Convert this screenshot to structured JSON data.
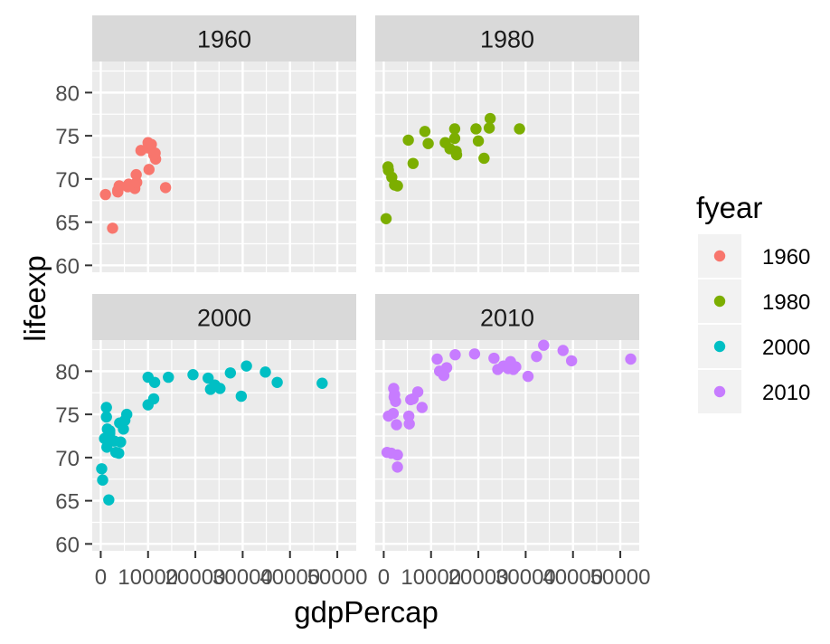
{
  "chart_data": {
    "type": "scatter",
    "xlabel": "gdpPercap",
    "ylabel": "lifeexp",
    "xlim": [
      -1800,
      54000
    ],
    "ylim": [
      59.2,
      83.6
    ],
    "x_ticks": [
      0,
      10000,
      20000,
      30000,
      40000,
      50000
    ],
    "x_tick_labels": [
      "0",
      "10000",
      "20000",
      "30000",
      "40000",
      "50000"
    ],
    "y_ticks": [
      60,
      65,
      70,
      75,
      80
    ],
    "y_tick_labels": [
      "60",
      "65",
      "70",
      "75",
      "80"
    ],
    "grid": true,
    "legend": {
      "title": "fyear",
      "position": "right",
      "items": [
        {
          "label": "1960",
          "color": "#F8766D"
        },
        {
          "label": "1980",
          "color": "#7CAE00"
        },
        {
          "label": "2000",
          "color": "#00BFC4"
        },
        {
          "label": "2010",
          "color": "#C77CFF"
        }
      ]
    },
    "panels": [
      {
        "title": "1960",
        "color": "#F8766D",
        "points": [
          [
            1000,
            68.2
          ],
          [
            2500,
            64.3
          ],
          [
            3600,
            68.5
          ],
          [
            3900,
            69.2
          ],
          [
            3600,
            68.7
          ],
          [
            5700,
            69.1
          ],
          [
            5900,
            69.4
          ],
          [
            7200,
            68.9
          ],
          [
            7600,
            69.6
          ],
          [
            7500,
            70.5
          ],
          [
            8500,
            73.3
          ],
          [
            10000,
            73.6
          ],
          [
            10000,
            74.2
          ],
          [
            10200,
            71.1
          ],
          [
            10700,
            74.0
          ],
          [
            11500,
            73.0
          ],
          [
            11600,
            72.3
          ],
          [
            11200,
            72.8
          ],
          [
            13700,
            69.0
          ]
        ]
      },
      {
        "title": "1980",
        "color": "#7CAE00",
        "points": [
          [
            500,
            65.4
          ],
          [
            900,
            71.4
          ],
          [
            1000,
            71.0
          ],
          [
            1700,
            70.2
          ],
          [
            2300,
            69.3
          ],
          [
            2900,
            69.2
          ],
          [
            5200,
            74.5
          ],
          [
            6200,
            71.8
          ],
          [
            8700,
            75.5
          ],
          [
            9400,
            74.1
          ],
          [
            13000,
            74.2
          ],
          [
            14000,
            73.5
          ],
          [
            15000,
            75.8
          ],
          [
            15000,
            74.7
          ],
          [
            15300,
            73.2
          ],
          [
            15400,
            72.8
          ],
          [
            19500,
            75.8
          ],
          [
            20000,
            74.4
          ],
          [
            21200,
            72.4
          ],
          [
            22300,
            75.9
          ],
          [
            22500,
            77.0
          ],
          [
            28700,
            75.8
          ]
        ]
      },
      {
        "title": "2000",
        "color": "#00BFC4",
        "points": [
          [
            200,
            68.7
          ],
          [
            400,
            67.4
          ],
          [
            800,
            72.2
          ],
          [
            1200,
            74.7
          ],
          [
            1200,
            75.8
          ],
          [
            1400,
            73.3
          ],
          [
            1300,
            71.2
          ],
          [
            1700,
            65.1
          ],
          [
            1800,
            71.9
          ],
          [
            1900,
            72.8
          ],
          [
            1900,
            73.1
          ],
          [
            2300,
            72.0
          ],
          [
            2900,
            71.9
          ],
          [
            3200,
            70.6
          ],
          [
            3800,
            70.5
          ],
          [
            4000,
            74.0
          ],
          [
            4200,
            71.8
          ],
          [
            4800,
            73.3
          ],
          [
            5100,
            74.3
          ],
          [
            5500,
            75.0
          ],
          [
            10000,
            79.3
          ],
          [
            10000,
            76.1
          ],
          [
            11200,
            76.8
          ],
          [
            11400,
            78.7
          ],
          [
            14300,
            79.3
          ],
          [
            19500,
            79.6
          ],
          [
            22700,
            79.2
          ],
          [
            23200,
            77.9
          ],
          [
            24100,
            78.4
          ],
          [
            25200,
            78.0
          ],
          [
            27400,
            79.8
          ],
          [
            29700,
            77.1
          ],
          [
            30800,
            80.6
          ],
          [
            34800,
            79.9
          ],
          [
            37300,
            78.7
          ],
          [
            46800,
            78.6
          ]
        ]
      },
      {
        "title": "2010",
        "color": "#C77CFF",
        "points": [
          [
            700,
            70.6
          ],
          [
            1000,
            74.8
          ],
          [
            1600,
            70.5
          ],
          [
            2000,
            75.1
          ],
          [
            2200,
            77.0
          ],
          [
            2300,
            77.3
          ],
          [
            2100,
            78.0
          ],
          [
            2500,
            76.5
          ],
          [
            2700,
            73.8
          ],
          [
            2900,
            70.3
          ],
          [
            2900,
            68.9
          ],
          [
            5400,
            73.9
          ],
          [
            5300,
            74.8
          ],
          [
            5700,
            76.7
          ],
          [
            6200,
            76.8
          ],
          [
            7200,
            77.6
          ],
          [
            8100,
            75.8
          ],
          [
            11300,
            81.4
          ],
          [
            11800,
            80.0
          ],
          [
            12700,
            79.5
          ],
          [
            13300,
            80.4
          ],
          [
            15100,
            81.9
          ],
          [
            19200,
            82.0
          ],
          [
            23300,
            81.5
          ],
          [
            24100,
            80.2
          ],
          [
            25300,
            80.6
          ],
          [
            26300,
            80.3
          ],
          [
            26800,
            81.1
          ],
          [
            27400,
            80.2
          ],
          [
            27900,
            80.5
          ],
          [
            30500,
            79.4
          ],
          [
            32300,
            81.7
          ],
          [
            33800,
            83.0
          ],
          [
            37900,
            82.4
          ],
          [
            39700,
            81.2
          ],
          [
            52200,
            81.4
          ]
        ]
      }
    ]
  }
}
